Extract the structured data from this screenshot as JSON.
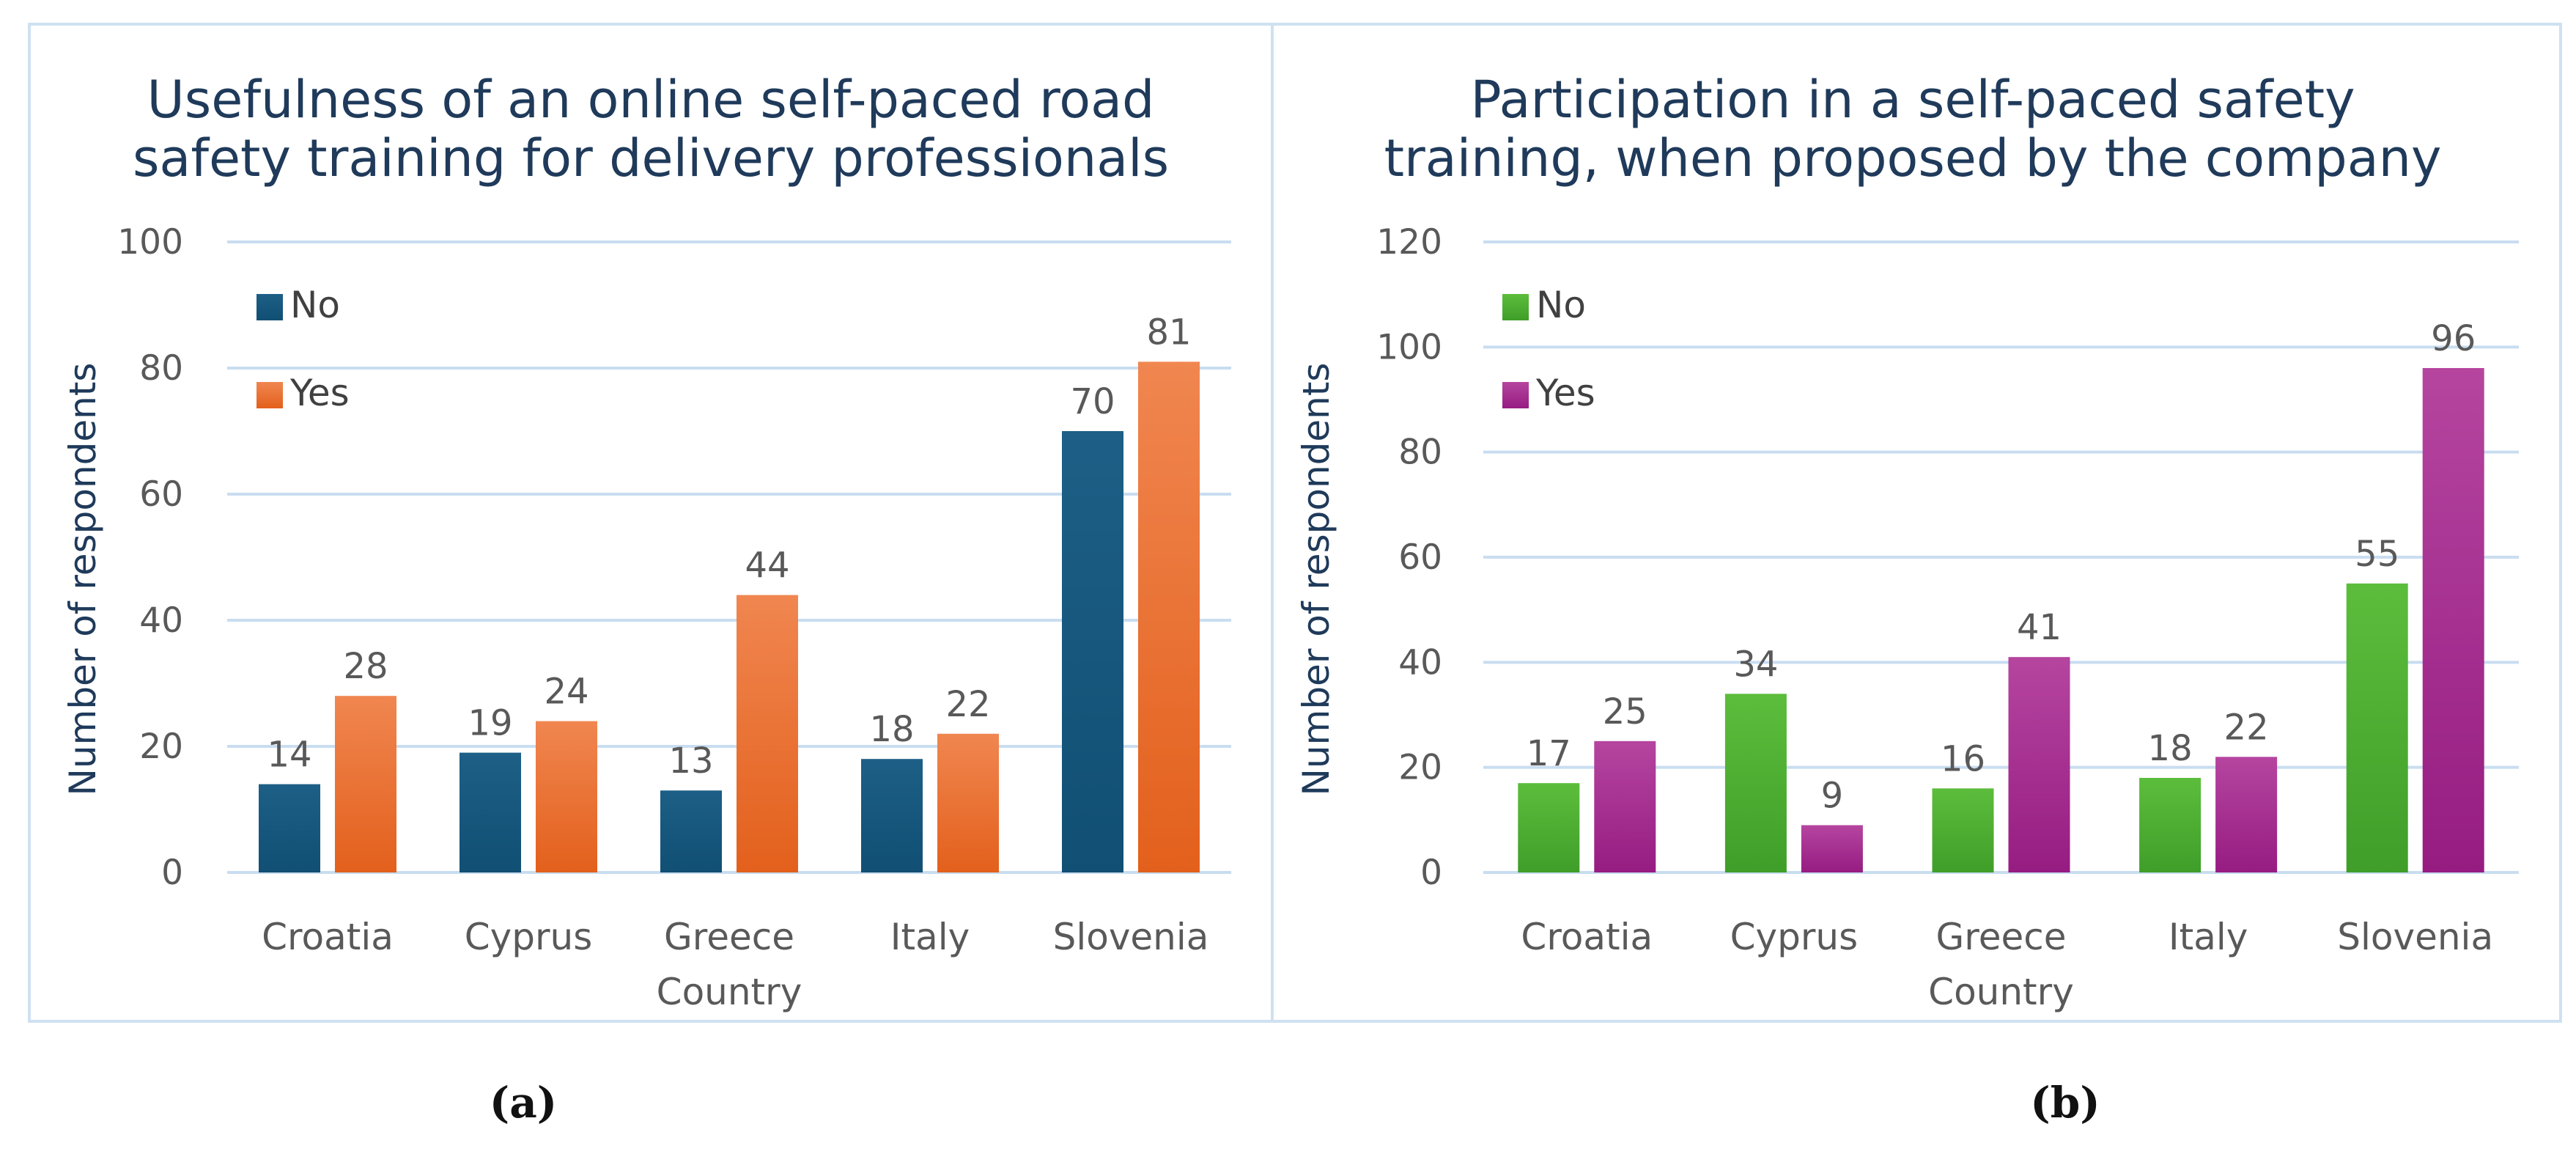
{
  "chart_data": [
    {
      "id": "a",
      "type": "bar",
      "title": [
        "Usefulness of an online self-paced road",
        "safety training for delivery professionals"
      ],
      "xlabel": "Country",
      "ylabel": "Number of respondents",
      "ylim": [
        0,
        100
      ],
      "yticks": [
        0,
        20,
        40,
        60,
        80,
        100
      ],
      "categories": [
        "Croatia",
        "Cyprus",
        "Greece",
        "Italy",
        "Slovenia"
      ],
      "series": [
        {
          "name": "No",
          "values": [
            14,
            19,
            13,
            18,
            70
          ],
          "colors": [
            "#1d5f86",
            "#114f74"
          ]
        },
        {
          "name": "Yes",
          "values": [
            28,
            24,
            44,
            22,
            81
          ],
          "colors": [
            "#f08650",
            "#e3601c"
          ]
        }
      ],
      "legend_position": "top-left",
      "panel_label": "(a)"
    },
    {
      "id": "b",
      "type": "bar",
      "title": [
        "Participation in a self-paced safety",
        "training, when proposed by the company"
      ],
      "xlabel": "Country",
      "ylabel": "Number of respondents",
      "ylim": [
        0,
        120
      ],
      "yticks": [
        0,
        20,
        40,
        60,
        80,
        100,
        120
      ],
      "categories": [
        "Croatia",
        "Cyprus",
        "Greece",
        "Italy",
        "Slovenia"
      ],
      "series": [
        {
          "name": "No",
          "values": [
            17,
            34,
            16,
            18,
            55
          ],
          "colors": [
            "#5cbd3c",
            "#3f9e29"
          ]
        },
        {
          "name": "Yes",
          "values": [
            25,
            9,
            41,
            22,
            96
          ],
          "colors": [
            "#b5459f",
            "#961c82"
          ]
        }
      ],
      "legend_position": "top-left",
      "panel_label": "(b)"
    }
  ]
}
